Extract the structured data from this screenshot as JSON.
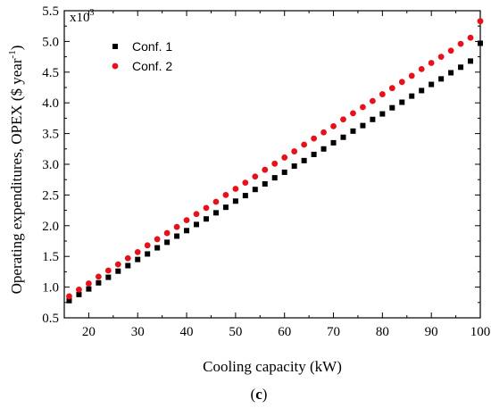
{
  "chart_data": {
    "type": "scatter",
    "xlabel": "Cooling capacity (kW)",
    "ylabel_main": "Operating expenditures, OPEX (",
    "ylabel_unit": "$ year",
    "ylabel_unit_exp": "-1",
    "ylabel_end": ")",
    "scale_base": "x10",
    "scale_exp": "3",
    "caption_open": "(",
    "caption_letter": "c",
    "caption_close": ")",
    "xlim": [
      15,
      100
    ],
    "ylim": [
      0.5,
      5.5
    ],
    "xticks": [
      20,
      30,
      40,
      50,
      60,
      70,
      80,
      90,
      100
    ],
    "xtick_labels": [
      "20",
      "30",
      "40",
      "50",
      "60",
      "70",
      "80",
      "90",
      "100"
    ],
    "yticks": [
      0.5,
      1.0,
      1.5,
      2.0,
      2.5,
      3.0,
      3.5,
      4.0,
      4.5,
      5.0,
      5.5
    ],
    "ytick_labels": [
      "0.5",
      "1.0",
      "1.5",
      "2.0",
      "2.5",
      "3.0",
      "3.5",
      "4.0",
      "4.5",
      "5.0",
      "5.5"
    ],
    "grid": false,
    "legend_position": "top-left",
    "x": [
      16,
      18,
      20,
      22,
      24,
      26,
      28,
      30,
      32,
      34,
      36,
      38,
      40,
      42,
      44,
      46,
      48,
      50,
      52,
      54,
      56,
      58,
      60,
      62,
      64,
      66,
      68,
      70,
      72,
      74,
      76,
      78,
      80,
      82,
      84,
      86,
      88,
      90,
      92,
      94,
      96,
      98,
      100
    ],
    "series": [
      {
        "name": "Conf. 1",
        "marker": "square",
        "color": "#000000",
        "values": [
          0.78,
          0.88,
          0.97,
          1.07,
          1.16,
          1.26,
          1.35,
          1.45,
          1.54,
          1.64,
          1.73,
          1.83,
          1.92,
          2.02,
          2.11,
          2.21,
          2.3,
          2.4,
          2.49,
          2.59,
          2.68,
          2.78,
          2.87,
          2.97,
          3.06,
          3.16,
          3.25,
          3.35,
          3.44,
          3.54,
          3.63,
          3.73,
          3.82,
          3.92,
          4.01,
          4.11,
          4.2,
          4.3,
          4.39,
          4.49,
          4.58,
          4.68,
          4.97
        ]
      },
      {
        "name": "Conf. 2",
        "marker": "circle",
        "color": "#e8101a",
        "values": [
          0.85,
          0.96,
          1.06,
          1.17,
          1.27,
          1.37,
          1.47,
          1.57,
          1.68,
          1.78,
          1.88,
          1.98,
          2.09,
          2.19,
          2.29,
          2.39,
          2.5,
          2.6,
          2.7,
          2.8,
          2.91,
          3.01,
          3.11,
          3.21,
          3.32,
          3.42,
          3.52,
          3.62,
          3.73,
          3.83,
          3.93,
          4.03,
          4.14,
          4.24,
          4.34,
          4.44,
          4.55,
          4.65,
          4.75,
          4.85,
          4.96,
          5.06,
          5.33
        ]
      }
    ]
  }
}
